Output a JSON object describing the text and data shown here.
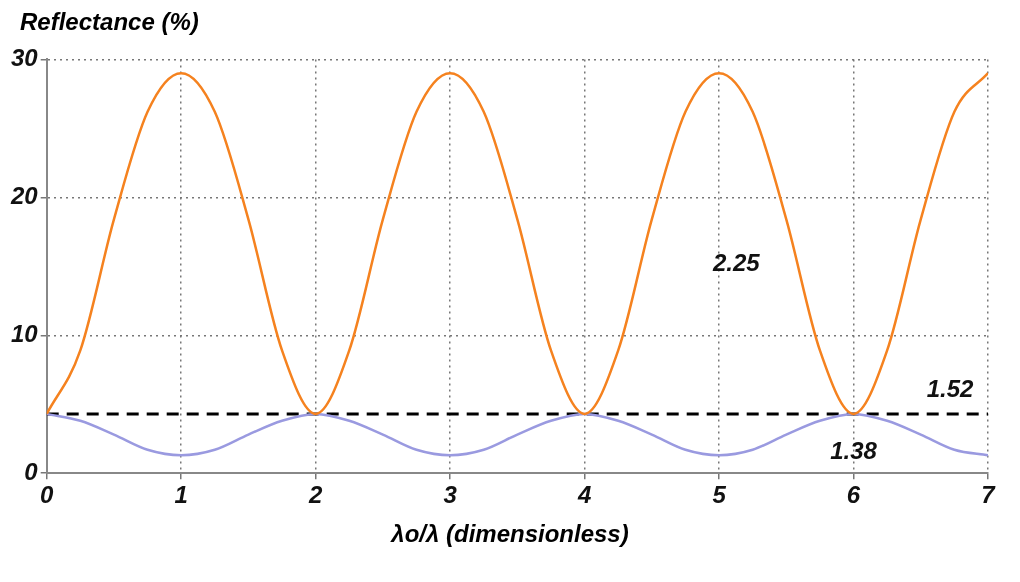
{
  "chart_data": {
    "type": "line",
    "ylabel": "Reflectance (%)",
    "xlabel": "λo/λ (dimensionless)",
    "x": [
      0,
      0.25,
      0.5,
      0.75,
      1,
      1.25,
      1.5,
      1.75,
      2,
      2.25,
      2.5,
      2.75,
      3,
      3.25,
      3.5,
      3.75,
      4,
      4.25,
      4.5,
      4.75,
      5,
      5.25,
      5.5,
      5.75,
      6,
      6.25,
      6.5,
      6.75,
      7
    ],
    "series": [
      {
        "name": "2.25",
        "color": "#f5821f",
        "values": [
          4.3,
          8.9,
          18.4,
          26.2,
          29,
          26.2,
          18.4,
          8.9,
          4.3,
          8.9,
          18.4,
          26.2,
          29,
          26.2,
          18.4,
          8.9,
          4.3,
          8.9,
          18.4,
          26.2,
          29,
          26.2,
          18.4,
          8.9,
          4.3,
          8.9,
          18.4,
          26.2,
          29
        ]
      },
      {
        "name": "1.38",
        "color": "#9a9ae0",
        "values": [
          4.3,
          3.8,
          2.8,
          1.7,
          1.3,
          1.7,
          2.8,
          3.8,
          4.3,
          3.8,
          2.8,
          1.7,
          1.3,
          1.7,
          2.8,
          3.8,
          4.3,
          3.8,
          2.8,
          1.7,
          1.3,
          1.7,
          2.8,
          3.8,
          4.3,
          3.8,
          2.8,
          1.7,
          1.3
        ]
      },
      {
        "name": "1.52",
        "color": "#000000",
        "line_style": "dashed",
        "x": [
          0,
          7
        ],
        "values": [
          4.3,
          4.3
        ]
      }
    ],
    "xlim": [
      0,
      7
    ],
    "ylim": [
      0,
      30
    ],
    "xticks": [
      0,
      1,
      2,
      3,
      4,
      5,
      6,
      7
    ],
    "yticks": [
      0,
      10,
      20,
      30
    ],
    "grid": true,
    "legend": false,
    "marker": "none",
    "line_style": "solid"
  }
}
